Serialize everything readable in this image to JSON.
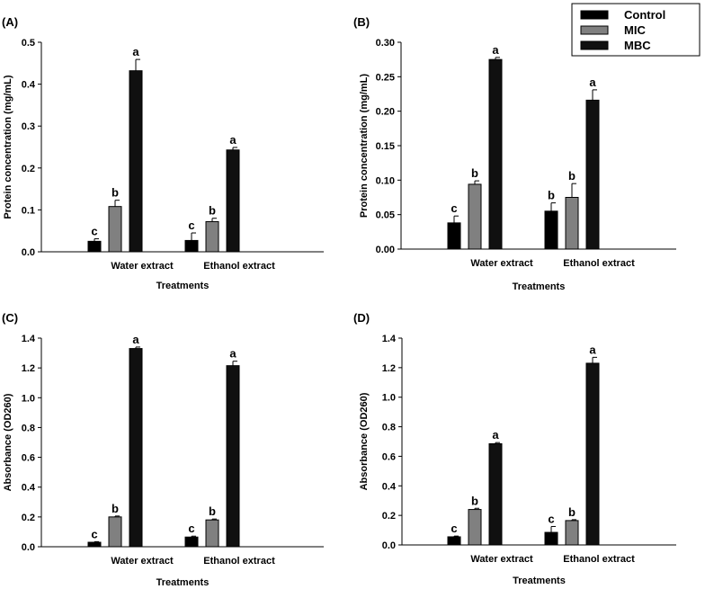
{
  "legend": [
    {
      "label": "Control",
      "color": "#000000"
    },
    {
      "label": "MIC",
      "color": "#808080"
    },
    {
      "label": "MBC",
      "color": "#101010"
    }
  ],
  "chart_data": [
    {
      "type": "bar",
      "panel": "(A)",
      "categories": [
        "Water extract",
        "Ethanol extract"
      ],
      "xlabel": "Treatments",
      "ylabel": "Protein concentration (mg/mL)",
      "ylim": [
        0,
        0.5
      ],
      "yticks": [
        "0.0",
        "0.1",
        "0.2",
        "0.3",
        "0.4",
        "0.5"
      ],
      "series": [
        {
          "name": "Control",
          "values": [
            0.025,
            0.027
          ],
          "errors": [
            0.006,
            0.018
          ],
          "letters": [
            "c",
            "c"
          ]
        },
        {
          "name": "MIC",
          "values": [
            0.108,
            0.072
          ],
          "errors": [
            0.015,
            0.008
          ],
          "letters": [
            "b",
            "b"
          ]
        },
        {
          "name": "MBC",
          "values": [
            0.432,
            0.243
          ],
          "errors": [
            0.027,
            0.006
          ],
          "letters": [
            "a",
            "a"
          ]
        }
      ]
    },
    {
      "type": "bar",
      "panel": "(B)",
      "categories": [
        "Water extract",
        "Ethanol extract"
      ],
      "xlabel": "Treatments",
      "ylabel": "Protein concentration (mg/mL)",
      "ylim": [
        0,
        0.3
      ],
      "yticks": [
        "0.00",
        "0.05",
        "0.10",
        "0.15",
        "0.20",
        "0.25",
        "0.30"
      ],
      "series": [
        {
          "name": "Control",
          "values": [
            0.038,
            0.055
          ],
          "errors": [
            0.01,
            0.012
          ],
          "letters": [
            "c",
            "b"
          ]
        },
        {
          "name": "MIC",
          "values": [
            0.094,
            0.075
          ],
          "errors": [
            0.005,
            0.02
          ],
          "letters": [
            "b",
            "b"
          ]
        },
        {
          "name": "MBC",
          "values": [
            0.275,
            0.216
          ],
          "errors": [
            0.003,
            0.015
          ],
          "letters": [
            "a",
            "a"
          ]
        }
      ]
    },
    {
      "type": "bar",
      "panel": "(C)",
      "categories": [
        "Water extract",
        "Ethanol extract"
      ],
      "xlabel": "Treatments",
      "ylabel": "Absorbance (OD260)",
      "ylim": [
        0,
        1.4
      ],
      "yticks": [
        "0.0",
        "0.2",
        "0.4",
        "0.6",
        "0.8",
        "1.0",
        "1.2",
        "1.4"
      ],
      "series": [
        {
          "name": "Control",
          "values": [
            0.03,
            0.065
          ],
          "errors": [
            0.004,
            0.006
          ],
          "letters": [
            "c",
            "c"
          ]
        },
        {
          "name": "MIC",
          "values": [
            0.2,
            0.18
          ],
          "errors": [
            0.006,
            0.006
          ],
          "letters": [
            "b",
            "b"
          ]
        },
        {
          "name": "MBC",
          "values": [
            1.33,
            1.215
          ],
          "errors": [
            0.01,
            0.03
          ],
          "letters": [
            "a",
            "a"
          ]
        }
      ]
    },
    {
      "type": "bar",
      "panel": "(D)",
      "categories": [
        "Water extract",
        "Ethanol extract"
      ],
      "xlabel": "Treatments",
      "ylabel": "Absorbance (OD260)",
      "ylim": [
        0,
        1.4
      ],
      "yticks": [
        "0.0",
        "0.2",
        "0.4",
        "0.6",
        "0.8",
        "1.0",
        "1.2",
        "1.4"
      ],
      "series": [
        {
          "name": "Control",
          "values": [
            0.055,
            0.085
          ],
          "errors": [
            0.005,
            0.04
          ],
          "letters": [
            "c",
            "c"
          ]
        },
        {
          "name": "MIC",
          "values": [
            0.24,
            0.165
          ],
          "errors": [
            0.008,
            0.006
          ],
          "letters": [
            "b",
            "b"
          ]
        },
        {
          "name": "MBC",
          "values": [
            0.685,
            1.23
          ],
          "errors": [
            0.008,
            0.04
          ],
          "letters": [
            "a",
            "a"
          ]
        }
      ]
    }
  ]
}
